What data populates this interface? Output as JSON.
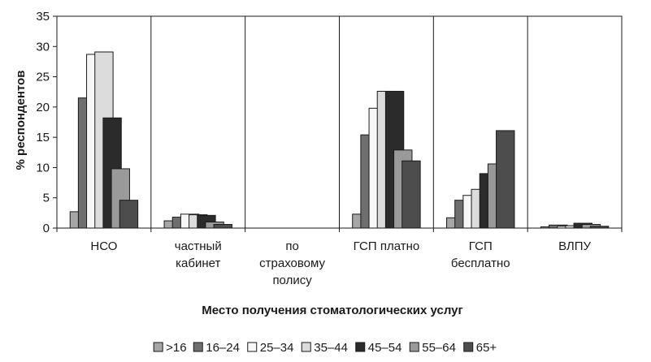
{
  "chart_data": {
    "type": "bar",
    "xlabel": "Место получения стоматологических услуг",
    "ylabel": "% респондентов",
    "ylim": [
      0,
      35
    ],
    "yticks": [
      0,
      5,
      10,
      15,
      20,
      25,
      30,
      35
    ],
    "grid": "vertical separators between categories",
    "legend_position": "bottom",
    "categories": [
      [
        "НСО"
      ],
      [
        "частный",
        "кабинет"
      ],
      [
        "по",
        "страховому",
        "полису"
      ],
      [
        "ГСП платно"
      ],
      [
        "ГСП",
        "бесплатно"
      ],
      [
        "ВЛПУ"
      ]
    ],
    "series": [
      {
        "name": ">16",
        "color": "#a6a6a6",
        "values": [
          2.7,
          1.2,
          0,
          2.3,
          1.7,
          0.2
        ]
      },
      {
        "name": "16–24",
        "color": "#6e6e6e",
        "values": [
          21.5,
          1.8,
          0,
          15.4,
          4.6,
          0.5
        ]
      },
      {
        "name": "25–34",
        "color": "#f7f7f7",
        "values": [
          28.7,
          2.3,
          0,
          19.8,
          5.4,
          0.3
        ]
      },
      {
        "name": "35–44",
        "color": "#dcdcdc",
        "values": [
          29.1,
          2.2,
          0,
          22.6,
          6.4,
          0.4
        ]
      },
      {
        "name": "45–54",
        "color": "#2b2b2b",
        "values": [
          18.2,
          2.1,
          0,
          22.6,
          9.0,
          0.8
        ]
      },
      {
        "name": "55–64",
        "color": "#9a9a9a",
        "values": [
          9.8,
          1.0,
          0,
          12.9,
          10.6,
          0.6
        ]
      },
      {
        "name": "65+",
        "color": "#4d4d4d",
        "values": [
          4.6,
          0.6,
          0,
          11.1,
          16.1,
          0.3
        ]
      }
    ]
  }
}
